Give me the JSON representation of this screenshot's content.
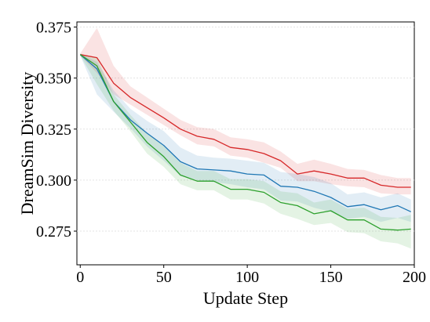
{
  "chart_data": {
    "type": "line",
    "title": "",
    "xlabel": "Update Step",
    "ylabel": "DreamSim Diversity",
    "xlim": [
      -2,
      200
    ],
    "ylim": [
      0.2585,
      0.3775
    ],
    "xticks": [
      0,
      50,
      100,
      150,
      200
    ],
    "yticks": [
      0.275,
      0.3,
      0.325,
      0.35,
      0.375
    ],
    "xtick_labels": [
      "0",
      "50",
      "100",
      "150",
      "200"
    ],
    "ytick_labels": [
      "0.275",
      "0.300",
      "0.325",
      "0.350",
      "0.375"
    ],
    "grid": "horizontal",
    "legend": "none",
    "x": [
      0,
      10,
      20,
      30,
      40,
      50,
      60,
      70,
      80,
      90,
      100,
      110,
      120,
      130,
      140,
      150,
      160,
      170,
      180,
      190,
      198
    ],
    "series": [
      {
        "color": "#d62728",
        "values": [
          0.3615,
          0.36,
          0.3475,
          0.3405,
          0.3355,
          0.3305,
          0.325,
          0.3215,
          0.32,
          0.316,
          0.315,
          0.313,
          0.3095,
          0.303,
          0.3045,
          0.303,
          0.301,
          0.301,
          0.2975,
          0.2965,
          0.2965
        ],
        "lower": [
          0.361,
          0.3525,
          0.342,
          0.337,
          0.332,
          0.327,
          0.322,
          0.3175,
          0.3165,
          0.312,
          0.311,
          0.3085,
          0.306,
          0.2995,
          0.2995,
          0.298,
          0.297,
          0.2965,
          0.2935,
          0.293,
          0.293
        ],
        "upper": [
          0.362,
          0.3745,
          0.356,
          0.346,
          0.3405,
          0.335,
          0.3295,
          0.326,
          0.325,
          0.321,
          0.32,
          0.3185,
          0.314,
          0.308,
          0.31,
          0.308,
          0.3055,
          0.305,
          0.3025,
          0.301,
          0.301
        ]
      },
      {
        "color": "#1f77b4",
        "values": [
          0.3615,
          0.3545,
          0.3385,
          0.3295,
          0.323,
          0.317,
          0.309,
          0.3055,
          0.305,
          0.3045,
          0.303,
          0.3025,
          0.297,
          0.2965,
          0.2945,
          0.2915,
          0.287,
          0.288,
          0.2855,
          0.2875,
          0.2845
        ],
        "lower": [
          0.361,
          0.342,
          0.3335,
          0.3255,
          0.3165,
          0.3095,
          0.302,
          0.3,
          0.299,
          0.298,
          0.2965,
          0.2955,
          0.29,
          0.2895,
          0.2865,
          0.2845,
          0.281,
          0.282,
          0.2795,
          0.2815,
          0.2795
        ],
        "upper": [
          0.362,
          0.358,
          0.344,
          0.335,
          0.329,
          0.324,
          0.316,
          0.312,
          0.311,
          0.3105,
          0.3095,
          0.3085,
          0.304,
          0.303,
          0.3015,
          0.2985,
          0.293,
          0.294,
          0.2915,
          0.2935,
          0.2905
        ]
      },
      {
        "color": "#2ca02c",
        "values": [
          0.3615,
          0.356,
          0.3385,
          0.3285,
          0.3185,
          0.3115,
          0.3025,
          0.2995,
          0.2995,
          0.2955,
          0.2955,
          0.294,
          0.289,
          0.2875,
          0.2835,
          0.285,
          0.2805,
          0.2805,
          0.276,
          0.2755,
          0.276
        ],
        "lower": [
          0.361,
          0.347,
          0.334,
          0.324,
          0.313,
          0.3065,
          0.298,
          0.295,
          0.295,
          0.2905,
          0.2905,
          0.2885,
          0.2835,
          0.281,
          0.278,
          0.279,
          0.2745,
          0.274,
          0.27,
          0.269,
          0.2665
        ],
        "upper": [
          0.362,
          0.36,
          0.342,
          0.332,
          0.323,
          0.3165,
          0.3085,
          0.3045,
          0.3045,
          0.3005,
          0.3005,
          0.2995,
          0.2945,
          0.2935,
          0.289,
          0.2905,
          0.286,
          0.2865,
          0.282,
          0.2815,
          0.283
        ]
      }
    ]
  }
}
